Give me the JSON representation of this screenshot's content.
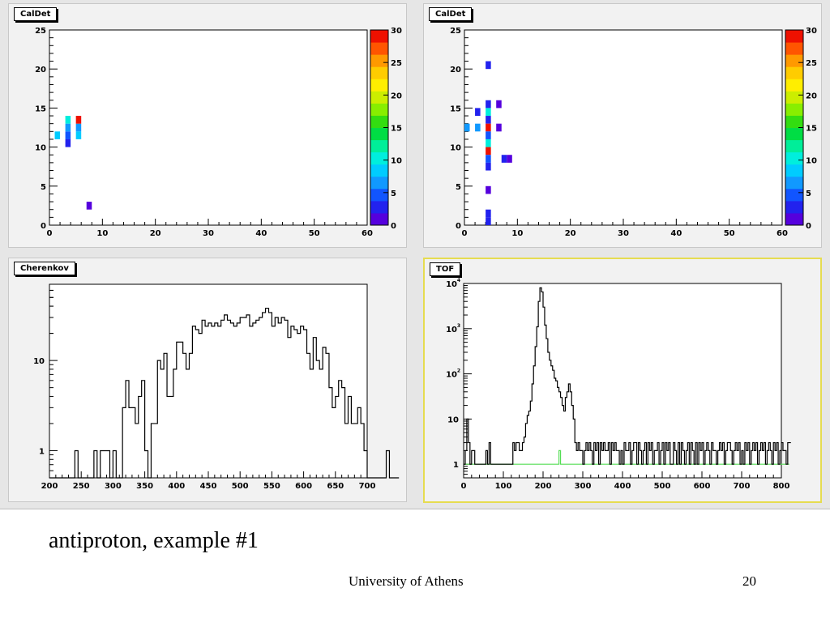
{
  "slide": {
    "caption": "antiproton, example #1",
    "footer": "University of Athens",
    "page_number": "20"
  },
  "colors": {
    "frame": "#e6e6e6",
    "pad": "#f2f2f2",
    "active_border": "#e6dc50",
    "hist_line": "#000000",
    "hist2_line": "#55dd55",
    "palette": [
      "#5500dd",
      "#2222ee",
      "#1155ff",
      "#1199ff",
      "#00ccff",
      "#00eedd",
      "#00ee99",
      "#00dd44",
      "#33dd11",
      "#88ee00",
      "#ccee00",
      "#ffee00",
      "#ffcc00",
      "#ff9900",
      "#ff5500",
      "#ee1100"
    ]
  },
  "chart_data": [
    {
      "type": "heatmap",
      "title": "CalDet",
      "xlim": [
        0,
        60
      ],
      "ylim": [
        0,
        25
      ],
      "x_ticks": [
        0,
        10,
        20,
        30,
        40,
        50,
        60
      ],
      "y_ticks": [
        0,
        5,
        10,
        15,
        20,
        25
      ],
      "z_range": [
        0,
        30
      ],
      "z_ticks": [
        0,
        5,
        10,
        15,
        20,
        25,
        30
      ],
      "cells": [
        {
          "x": 1,
          "y": 11,
          "z": 9
        },
        {
          "x": 3,
          "y": 10,
          "z": 3
        },
        {
          "x": 3,
          "y": 11,
          "z": 4
        },
        {
          "x": 3,
          "y": 12,
          "z": 6
        },
        {
          "x": 3,
          "y": 13,
          "z": 11
        },
        {
          "x": 5,
          "y": 11,
          "z": 8
        },
        {
          "x": 5,
          "y": 12,
          "z": 6
        },
        {
          "x": 5,
          "y": 13,
          "z": 30
        },
        {
          "x": 7,
          "y": 2,
          "z": 1
        }
      ]
    },
    {
      "type": "heatmap",
      "title": "CalDet",
      "xlim": [
        0,
        60
      ],
      "ylim": [
        0,
        25
      ],
      "x_ticks": [
        0,
        10,
        20,
        30,
        40,
        50,
        60
      ],
      "y_ticks": [
        0,
        5,
        10,
        15,
        20,
        25
      ],
      "z_range": [
        0,
        30
      ],
      "z_ticks": [
        0,
        5,
        10,
        15,
        20,
        25,
        30
      ],
      "cells": [
        {
          "x": 4,
          "y": 20,
          "z": 3
        },
        {
          "x": 4,
          "y": 15,
          "z": 3
        },
        {
          "x": 6,
          "y": 15,
          "z": 1
        },
        {
          "x": 2,
          "y": 14,
          "z": 2
        },
        {
          "x": 4,
          "y": 14,
          "z": 11
        },
        {
          "x": 0,
          "y": 12,
          "z": 7
        },
        {
          "x": 2,
          "y": 12,
          "z": 6
        },
        {
          "x": 4,
          "y": 13,
          "z": 3
        },
        {
          "x": 4,
          "y": 12,
          "z": 30
        },
        {
          "x": 6,
          "y": 12,
          "z": 1
        },
        {
          "x": 4,
          "y": 11,
          "z": 5
        },
        {
          "x": 4,
          "y": 10,
          "z": 11
        },
        {
          "x": 4,
          "y": 9,
          "z": 30
        },
        {
          "x": 4,
          "y": 8,
          "z": 4
        },
        {
          "x": 4,
          "y": 7,
          "z": 2
        },
        {
          "x": 7,
          "y": 8,
          "z": 3
        },
        {
          "x": 8,
          "y": 8,
          "z": 1
        },
        {
          "x": 4,
          "y": 4,
          "z": 1
        },
        {
          "x": 4,
          "y": 1,
          "z": 3
        },
        {
          "x": 4,
          "y": 0,
          "z": 3
        }
      ]
    },
    {
      "type": "line",
      "title": "Cherenkov",
      "xlim": [
        200,
        700
      ],
      "ylim": [
        0.5,
        70
      ],
      "log_y": true,
      "x_ticks": [
        200,
        250,
        300,
        350,
        400,
        450,
        500,
        550,
        600,
        650,
        700
      ],
      "y_ticks": [
        1,
        10
      ],
      "bin_width": 5,
      "x_start": 200,
      "values": [
        0,
        0,
        0,
        0,
        0,
        0,
        0,
        0,
        1,
        0,
        0,
        0,
        0,
        0,
        1,
        0,
        1,
        1,
        1,
        0,
        1,
        0,
        0,
        3,
        6,
        3,
        3,
        2,
        4,
        6,
        1,
        0,
        2,
        2,
        10,
        8,
        12,
        4,
        4,
        8,
        16,
        16,
        12,
        8,
        12,
        24,
        22,
        20,
        28,
        24,
        26,
        24,
        26,
        24,
        28,
        32,
        28,
        26,
        24,
        26,
        30,
        30,
        32,
        24,
        26,
        28,
        30,
        34,
        38,
        34,
        24,
        30,
        26,
        30,
        28,
        18,
        24,
        22,
        20,
        24,
        22,
        12,
        8,
        18,
        10,
        8,
        14,
        12,
        5,
        3,
        4,
        6,
        5,
        2,
        4,
        2,
        2,
        3,
        2,
        1,
        0,
        0,
        0,
        0,
        0,
        0,
        1,
        0,
        0,
        0
      ]
    },
    {
      "type": "line",
      "title": "TOF",
      "xlim": [
        0,
        800
      ],
      "ylim": [
        0.5,
        10000
      ],
      "log_y": true,
      "x_ticks": [
        0,
        100,
        200,
        300,
        400,
        500,
        600,
        700,
        800
      ],
      "y_ticks": [
        1,
        10,
        100,
        1000,
        10000
      ],
      "y_tick_labels": [
        "1",
        "10",
        "10^2",
        "10^3",
        "10^4"
      ],
      "bin_width": 4,
      "x_start": 0,
      "series": [
        {
          "values": [
            1,
            2,
            10,
            3,
            1,
            2,
            2,
            1,
            1,
            1,
            1,
            1,
            1,
            1,
            2,
            1,
            3,
            1,
            1,
            1,
            1,
            1,
            1,
            1,
            1,
            1,
            1,
            1,
            1,
            1,
            1,
            3,
            2,
            3,
            3,
            2,
            2,
            3,
            4,
            8,
            12,
            15,
            25,
            60,
            150,
            400,
            1100,
            4000,
            8000,
            6500,
            3000,
            1200,
            600,
            300,
            200,
            150,
            120,
            80,
            70,
            50,
            40,
            30,
            20,
            15,
            30,
            40,
            60,
            40,
            20,
            10,
            3,
            2,
            3,
            2,
            2,
            1,
            2,
            3,
            2,
            3,
            2,
            1,
            3,
            2,
            3,
            1,
            3,
            2,
            3,
            2,
            2,
            3,
            1,
            3,
            2,
            3,
            2,
            2,
            1,
            2,
            1,
            3,
            2,
            2,
            3,
            1,
            2,
            3,
            3,
            1,
            3,
            2,
            1,
            2,
            3,
            1,
            3,
            2,
            3,
            1,
            2,
            2,
            3,
            1,
            2,
            3,
            1,
            3,
            2,
            3,
            1,
            1,
            3,
            2,
            1,
            3,
            1,
            3,
            2,
            1,
            2,
            3,
            1,
            3,
            2,
            1,
            3,
            1,
            3,
            2,
            3,
            1,
            2,
            3,
            2,
            1,
            3,
            2,
            2,
            1,
            2,
            3,
            2,
            3,
            1,
            2,
            3,
            3,
            2,
            1,
            2,
            3,
            2,
            3,
            1,
            2,
            1,
            3,
            2,
            3,
            1,
            2,
            3,
            2,
            3,
            1,
            2,
            3,
            2,
            3,
            1,
            2,
            3,
            2,
            1,
            3,
            2,
            3,
            1,
            2,
            3,
            2,
            2,
            1,
            3,
            3
          ]
        },
        {
          "values": [
            1,
            1,
            1,
            1,
            1,
            1,
            1,
            1,
            1,
            1,
            1,
            1,
            1,
            1,
            1,
            1,
            1,
            1,
            1,
            1,
            1,
            1,
            1,
            1,
            1,
            1,
            1,
            1,
            1,
            1,
            1,
            1,
            1,
            1,
            1,
            1,
            1,
            1,
            1,
            1,
            1,
            1,
            1,
            1,
            1,
            1,
            1,
            1,
            1,
            1,
            1,
            1,
            1,
            1,
            1,
            1,
            1,
            1,
            1,
            1,
            2,
            1,
            1,
            1,
            1,
            1,
            1,
            1,
            1,
            1,
            1,
            1,
            1,
            1,
            1,
            1,
            1,
            1,
            1,
            1,
            1,
            1,
            1,
            1,
            1,
            1,
            1,
            1,
            1,
            1,
            1,
            1,
            1,
            1,
            1,
            1,
            1,
            1,
            1,
            1,
            1,
            1,
            1,
            1,
            1,
            1,
            1,
            1,
            1,
            1,
            1,
            1,
            1,
            1,
            1,
            1,
            1,
            1,
            1,
            1,
            1,
            1,
            1,
            1,
            1,
            1,
            1,
            1,
            1,
            1,
            1,
            1,
            1,
            1,
            1,
            1,
            1,
            1,
            1,
            1,
            1,
            1,
            1,
            1,
            1,
            1,
            1,
            1,
            1,
            1,
            1,
            1,
            1,
            1,
            1,
            1,
            1,
            1,
            1,
            1,
            1,
            1,
            1,
            1,
            1,
            1,
            1,
            1,
            1,
            1,
            1,
            1,
            1,
            1,
            1,
            1,
            1,
            1,
            1,
            1,
            1,
            1,
            1,
            1,
            1,
            1,
            1,
            1,
            1,
            1,
            1,
            1,
            1,
            1,
            1,
            1,
            1,
            1,
            1,
            1,
            1,
            1,
            1,
            1,
            1
          ]
        }
      ]
    }
  ]
}
